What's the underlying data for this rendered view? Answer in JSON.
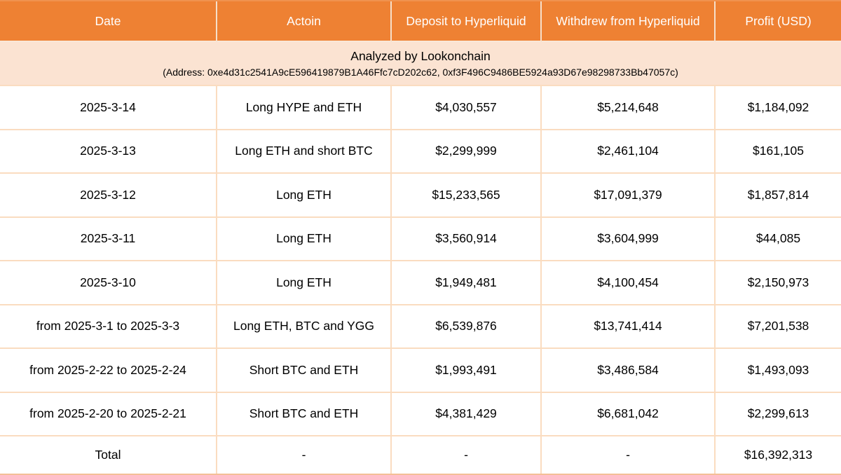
{
  "colors": {
    "header_bg": "#EE8133",
    "header_text": "#FFFFFF",
    "subtitle_bg": "#FBE3D2",
    "grid_border": "#FADCC0",
    "body_text": "#000000"
  },
  "chart_data": {
    "type": "table",
    "title": "Analyzed by Lookonchain",
    "subtitle": "(Address: 0xe4d31c2541A9cE596419879B1A46Ffc7cD202c62, 0xf3F496C9486BE5924a93D67e98298733Bb47057c)",
    "columns": [
      "Date",
      "Actoin",
      "Deposit to Hyperliquid",
      "Withdrew from Hyperliquid",
      "Profit (USD)"
    ],
    "rows": [
      [
        "2025-3-14",
        "Long HYPE and ETH",
        "$4,030,557",
        "$5,214,648",
        "$1,184,092"
      ],
      [
        "2025-3-13",
        "Long ETH and short BTC",
        "$2,299,999",
        "$2,461,104",
        "$161,105"
      ],
      [
        "2025-3-12",
        "Long ETH",
        "$15,233,565",
        "$17,091,379",
        "$1,857,814"
      ],
      [
        "2025-3-11",
        "Long ETH",
        "$3,560,914",
        "$3,604,999",
        "$44,085"
      ],
      [
        "2025-3-10",
        "Long ETH",
        "$1,949,481",
        "$4,100,454",
        "$2,150,973"
      ],
      [
        "from 2025-3-1 to 2025-3-3",
        "Long ETH, BTC and YGG",
        "$6,539,876",
        "$13,741,414",
        "$7,201,538"
      ],
      [
        "from 2025-2-22 to 2025-2-24",
        "Short BTC and ETH",
        "$1,993,491",
        "$3,486,584",
        "$1,493,093"
      ],
      [
        "from 2025-2-20 to 2025-2-21",
        "Short BTC and ETH",
        "$4,381,429",
        "$6,681,042",
        "$2,299,613"
      ],
      [
        "Total",
        "-",
        "-",
        "-",
        "$16,392,313"
      ]
    ],
    "total_profit": "$16,392,313",
    "layout": {
      "grid": true,
      "column_alignment": "center",
      "header_position": "top"
    }
  }
}
